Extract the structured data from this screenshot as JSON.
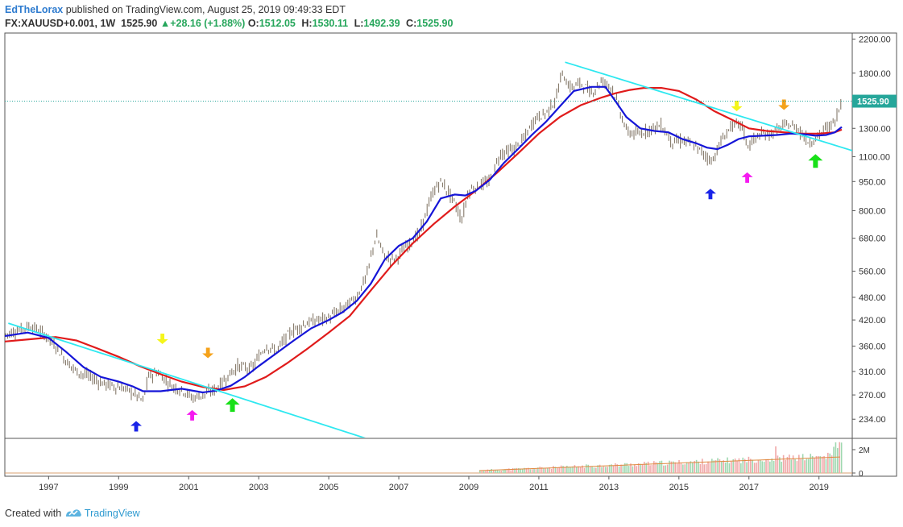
{
  "header": {
    "author": "EdTheLorax",
    "published": "published on TradingView.com, August 25, 2019 09:49:33 EDT",
    "symbol": "FX:XAUUSD+0.001, 1W",
    "last": "1525.90",
    "change": "+28.16 (+1.88%)",
    "ohlc": [
      {
        "k": "O:",
        "v": "1512.05"
      },
      {
        "k": "H:",
        "v": "1530.11"
      },
      {
        "k": "L:",
        "v": "1492.39"
      },
      {
        "k": "C:",
        "v": "1525.90"
      }
    ]
  },
  "footer": {
    "created": "Created with",
    "brand": "TradingView"
  },
  "colors": {
    "up": "#26a65b",
    "candle": "#7a6d5c",
    "ma_fast": "#1515d8",
    "ma_slow": "#e01b1b",
    "trend": "#2ee8f0",
    "price_tag": "#26a69a",
    "yellow": "#f5f51a",
    "orange": "#f5a21a",
    "magenta": "#f51af0",
    "blue": "#1a24e8",
    "green": "#18e018"
  },
  "chart_data": {
    "type": "line",
    "scale": "log",
    "ylim": [
      210,
      2280
    ],
    "xlim": [
      1995.75,
      2019.95
    ],
    "yticks": [
      "2200.00",
      "1800.00",
      "1300.00",
      "1100.00",
      "950.00",
      "800.00",
      "680.00",
      "560.00",
      "480.00",
      "420.00",
      "360.00",
      "310.00",
      "270.00",
      "234.00"
    ],
    "xticks": [
      "1997",
      "1999",
      "2001",
      "2003",
      "2005",
      "2007",
      "2009",
      "2011",
      "2013",
      "2015",
      "2017",
      "2019"
    ],
    "last_price": {
      "value": 1525.9,
      "label": "1525.90"
    },
    "series": [
      {
        "key": "price",
        "x": [
          1995.75,
          1996.1,
          1996.5,
          1996.9,
          1997.2,
          1997.5,
          1997.8,
          1998.2,
          1998.5,
          1998.8,
          1999.2,
          1999.5,
          1999.7,
          1999.85,
          2000.1,
          2000.5,
          2000.9,
          2001.1,
          2001.4,
          2001.8,
          2002.1,
          2002.4,
          2002.8,
          2003.2,
          2003.5,
          2003.9,
          2004.3,
          2004.7,
          2005.0,
          2005.4,
          2005.8,
          2006.1,
          2006.35,
          2006.6,
          2006.9,
          2007.3,
          2007.6,
          2008.0,
          2008.2,
          2008.5,
          2008.8,
          2009.0,
          2009.3,
          2009.6,
          2009.9,
          2010.3,
          2010.6,
          2010.9,
          2011.2,
          2011.5,
          2011.65,
          2011.9,
          2012.2,
          2012.5,
          2012.8,
          2013.1,
          2013.3,
          2013.5,
          2013.8,
          2014.2,
          2014.5,
          2014.8,
          2015.1,
          2015.4,
          2015.7,
          2015.95,
          2016.2,
          2016.5,
          2016.8,
          2016.95,
          2017.3,
          2017.6,
          2017.9,
          2018.1,
          2018.4,
          2018.7,
          2018.9,
          2019.2,
          2019.45,
          2019.65
        ],
        "values": [
          385,
          395,
          405,
          385,
          360,
          330,
          310,
          300,
          290,
          285,
          280,
          270,
          260,
          300,
          310,
          285,
          275,
          265,
          270,
          280,
          300,
          320,
          315,
          360,
          350,
          390,
          410,
          420,
          425,
          450,
          480,
          550,
          690,
          610,
          600,
          660,
          700,
          900,
          950,
          870,
          760,
          900,
          930,
          950,
          1120,
          1150,
          1230,
          1380,
          1420,
          1550,
          1800,
          1650,
          1700,
          1600,
          1720,
          1650,
          1450,
          1280,
          1250,
          1300,
          1320,
          1200,
          1210,
          1180,
          1120,
          1070,
          1200,
          1320,
          1330,
          1170,
          1250,
          1260,
          1300,
          1330,
          1300,
          1200,
          1220,
          1300,
          1350,
          1525.9
        ]
      },
      {
        "key": "ma_fast",
        "x": [
          1995.75,
          1996.4,
          1997.0,
          1997.5,
          1998.0,
          1998.5,
          1999.0,
          1999.4,
          1999.7,
          2000.2,
          2000.8,
          2001.4,
          2001.8,
          2002.2,
          2002.6,
          2003.0,
          2003.5,
          2004.0,
          2004.5,
          2005.0,
          2005.4,
          2005.8,
          2006.2,
          2006.6,
          2007.0,
          2007.4,
          2007.8,
          2008.2,
          2008.6,
          2008.9,
          2009.2,
          2009.6,
          2010.0,
          2010.4,
          2010.8,
          2011.2,
          2011.6,
          2012.0,
          2012.5,
          2012.9,
          2013.2,
          2013.5,
          2013.9,
          2014.3,
          2014.7,
          2015.1,
          2015.5,
          2015.8,
          2016.1,
          2016.4,
          2016.7,
          2017.0,
          2017.4,
          2017.8,
          2018.2,
          2018.6,
          2018.9,
          2019.2,
          2019.45,
          2019.65
        ],
        "values": [
          382,
          390,
          378,
          348,
          318,
          300,
          292,
          284,
          276,
          276,
          280,
          274,
          277,
          285,
          300,
          320,
          345,
          372,
          400,
          420,
          440,
          470,
          520,
          600,
          650,
          680,
          750,
          860,
          880,
          875,
          900,
          960,
          1060,
          1150,
          1250,
          1350,
          1480,
          1620,
          1660,
          1660,
          1520,
          1390,
          1300,
          1280,
          1270,
          1220,
          1190,
          1160,
          1150,
          1180,
          1220,
          1240,
          1245,
          1250,
          1260,
          1255,
          1245,
          1250,
          1270,
          1310
        ]
      },
      {
        "key": "ma_slow",
        "x": [
          1995.75,
          1996.5,
          1997.2,
          1997.8,
          1998.4,
          1999.0,
          1999.6,
          2000.2,
          2000.8,
          2001.4,
          2002.0,
          2002.6,
          2003.2,
          2003.8,
          2004.4,
          2005.0,
          2005.6,
          2006.2,
          2006.8,
          2007.4,
          2008.0,
          2008.6,
          2009.2,
          2009.8,
          2010.4,
          2011.0,
          2011.6,
          2012.2,
          2012.8,
          2013.2,
          2013.6,
          2014.0,
          2014.5,
          2015.0,
          2015.5,
          2016.0,
          2016.5,
          2017.0,
          2017.5,
          2018.0,
          2018.5,
          2019.0,
          2019.45,
          2019.65
        ],
        "values": [
          370,
          375,
          380,
          372,
          355,
          338,
          320,
          305,
          292,
          283,
          278,
          284,
          300,
          325,
          355,
          390,
          430,
          500,
          580,
          660,
          740,
          820,
          900,
          1000,
          1120,
          1260,
          1390,
          1490,
          1560,
          1600,
          1630,
          1650,
          1650,
          1620,
          1540,
          1440,
          1370,
          1300,
          1280,
          1270,
          1260,
          1260,
          1270,
          1290
        ]
      },
      {
        "key": "trend1",
        "x": [
          1995.85,
          2006.35
        ],
        "values": [
          412,
          205
        ]
      },
      {
        "key": "trend2",
        "x": [
          2011.75,
          2019.95
        ],
        "values": [
          1920,
          1140
        ]
      }
    ],
    "volume": {
      "ticks": [
        "2M",
        "0"
      ],
      "x_start": 2009.3
    },
    "annotations": [
      {
        "dir": "up",
        "color": "blue",
        "x": 1999.5,
        "y": 225
      },
      {
        "dir": "down",
        "color": "yellow",
        "x": 2000.25,
        "y": 375
      },
      {
        "dir": "up",
        "color": "magenta",
        "x": 2001.1,
        "y": 240
      },
      {
        "dir": "down",
        "color": "orange",
        "x": 2001.55,
        "y": 345
      },
      {
        "dir": "up",
        "color": "green",
        "x": 2002.25,
        "y": 255
      },
      {
        "dir": "up",
        "color": "blue",
        "x": 2015.9,
        "y": 885
      },
      {
        "dir": "down",
        "color": "yellow",
        "x": 2016.65,
        "y": 1480
      },
      {
        "dir": "up",
        "color": "magenta",
        "x": 2016.95,
        "y": 975
      },
      {
        "dir": "down",
        "color": "orange",
        "x": 2018.0,
        "y": 1490
      },
      {
        "dir": "up",
        "color": "green",
        "x": 2018.9,
        "y": 1075
      }
    ]
  }
}
